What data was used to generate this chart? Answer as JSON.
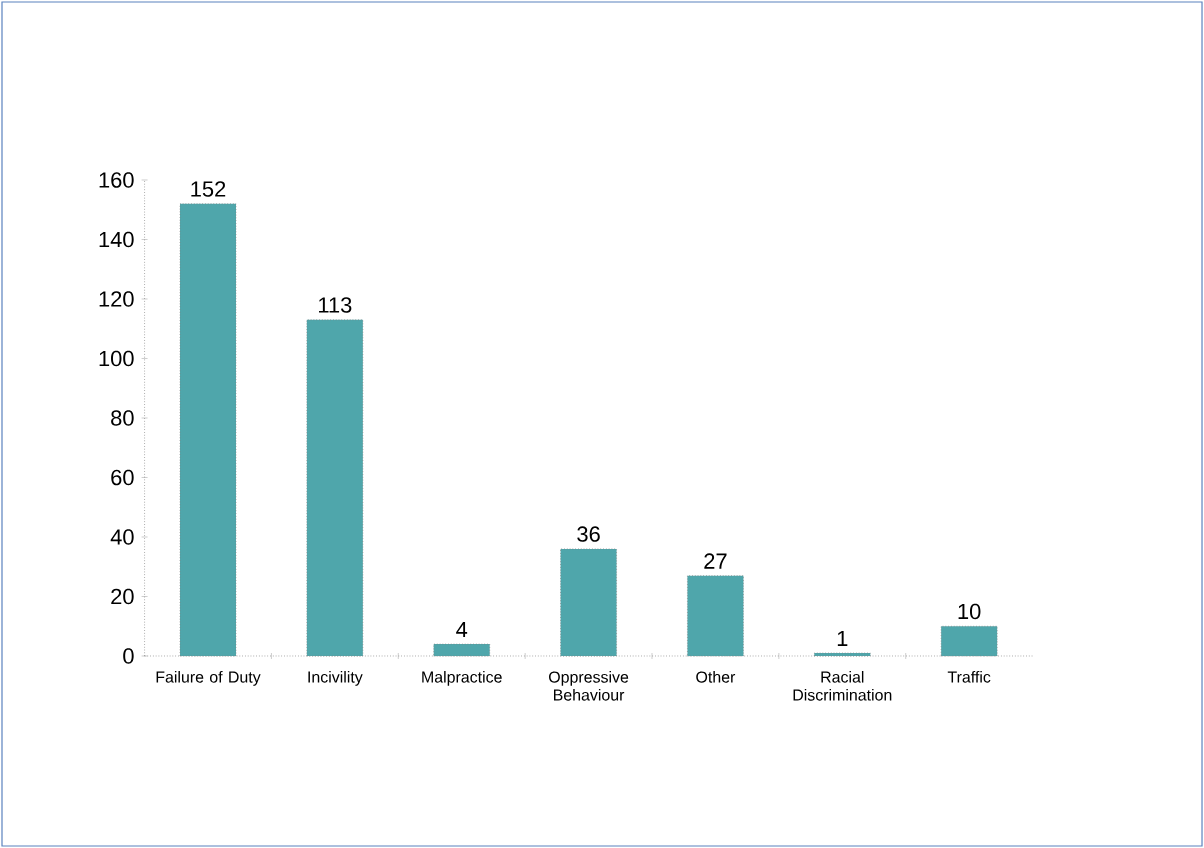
{
  "chart_data": {
    "type": "bar",
    "categories": [
      "Failure of Duty",
      "Incivility",
      "Malpractice",
      "Oppressive Behaviour",
      "Other",
      "Racial Discrimination",
      "Traffic"
    ],
    "values": [
      152,
      113,
      4,
      36,
      27,
      1,
      10
    ],
    "color": "#4fa6ab",
    "ylim": [
      0,
      160
    ],
    "yticks": [
      0,
      20,
      40,
      60,
      80,
      100,
      120,
      140,
      160
    ],
    "data_labels": true
  }
}
